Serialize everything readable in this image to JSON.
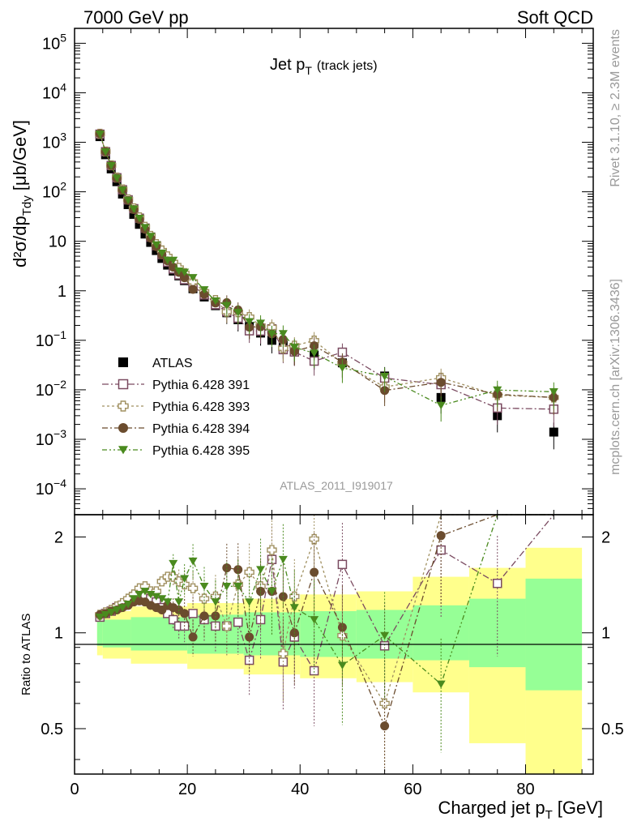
{
  "header": {
    "left": "7000 GeV pp",
    "right": "Soft QCD"
  },
  "side_labels": {
    "rivet": "Rivet 3.1.10, ≥ 2.3M events",
    "mcplots": "mcplots.cern.ch [arXiv:1306.3436]"
  },
  "chart_data": {
    "type": "scatter",
    "title": "Jet p",
    "title_sub": "T",
    "title_note": "(track jets)",
    "analysis_id": "ATLAS_2011_I919017",
    "xlabel": "Charged jet p",
    "xlabel_sub": "T",
    "xlabel_unit": "[GeV]",
    "ylabel": "d²σ/dp",
    "ylabel_sub": "Tdy",
    "ylabel_unit": "[μb/GeV]",
    "ratio_ylabel": "Ratio to ATLAS",
    "xlim": [
      0,
      92
    ],
    "ylim": [
      3e-05,
      200000
    ],
    "yscale": "log",
    "ratio_ylim": [
      0.36,
      2.35
    ],
    "ratio_yscale": "log",
    "x_ticks": [
      "0",
      "20",
      "40",
      "60",
      "80"
    ],
    "y_ticks": [
      "10^5",
      "10^4",
      "10^3",
      "10^2",
      "10",
      "1",
      "10^-1",
      "10^-2",
      "10^-3",
      "10^-4"
    ],
    "ratio_ticks": [
      "2",
      "1",
      "0.5"
    ],
    "legend_position": "middle-left",
    "x": [
      4.5,
      5.5,
      6.5,
      7.5,
      8.5,
      9.5,
      10.5,
      11.5,
      12.5,
      13.5,
      14.5,
      15.5,
      16.5,
      17.5,
      18.5,
      19.5,
      21,
      23,
      25,
      27,
      29,
      31,
      33,
      35,
      37,
      39,
      42.5,
      47.5,
      55,
      65,
      75,
      85
    ],
    "series": [
      {
        "name": "ATLAS",
        "color": "#000000",
        "marker": "square-filled",
        "values": [
          1300,
          560,
          290,
          160,
          90,
          55,
          35,
          22,
          14,
          9.5,
          6.5,
          4.5,
          3.3,
          2.5,
          2.0,
          1.6,
          1.1,
          0.75,
          0.5,
          0.36,
          0.26,
          0.19,
          0.14,
          0.1,
          0.08,
          0.06,
          0.05,
          0.035,
          0.019,
          0.007,
          0.003,
          0.0014
        ],
        "band_inner": [
          [
            4,
            5,
            0.91,
            1.09
          ],
          [
            5,
            10,
            0.9,
            1.1
          ],
          [
            10,
            20,
            0.88,
            1.12
          ],
          [
            20,
            30,
            0.86,
            1.14
          ],
          [
            30,
            40,
            0.85,
            1.16
          ],
          [
            40,
            50,
            0.84,
            1.17
          ],
          [
            50,
            60,
            0.83,
            1.18
          ],
          [
            60,
            70,
            0.82,
            1.22
          ],
          [
            70,
            80,
            0.78,
            1.28
          ],
          [
            80,
            90,
            0.66,
            1.48
          ]
        ],
        "band_outer": [
          [
            4,
            5,
            0.85,
            1.15
          ],
          [
            5,
            10,
            0.83,
            1.17
          ],
          [
            10,
            20,
            0.8,
            1.21
          ],
          [
            20,
            30,
            0.77,
            1.24
          ],
          [
            30,
            40,
            0.74,
            1.28
          ],
          [
            40,
            50,
            0.72,
            1.32
          ],
          [
            50,
            60,
            0.7,
            1.35
          ],
          [
            60,
            70,
            0.65,
            1.5
          ],
          [
            70,
            80,
            0.45,
            1.6
          ],
          [
            80,
            90,
            0.3,
            1.85
          ]
        ]
      },
      {
        "name": "Pythia 6.428 391",
        "color": "#7a4a60",
        "marker": "square-open",
        "ratio": [
          1.12,
          1.15,
          1.17,
          1.2,
          1.22,
          1.25,
          1.3,
          1.33,
          1.32,
          1.28,
          1.25,
          1.2,
          1.15,
          1.1,
          1.05,
          1.05,
          1.15,
          1.1,
          1.05,
          1.05,
          1.08,
          0.82,
          1.1,
          1.7,
          0.81,
          0.97,
          0.76,
          1.64,
          0.91,
          1.82,
          1.43,
          2.9
        ]
      },
      {
        "name": "Pythia 6.428 393",
        "color": "#a09060",
        "marker": "cross-open",
        "ratio": [
          1.14,
          1.16,
          1.18,
          1.21,
          1.24,
          1.28,
          1.32,
          1.38,
          1.4,
          1.35,
          1.35,
          1.45,
          1.5,
          1.5,
          1.45,
          1.42,
          1.38,
          1.28,
          1.3,
          1.05,
          1.42,
          1.55,
          1.4,
          1.82,
          0.86,
          1.3,
          1.97,
          0.98,
          0.6,
          2.5,
          2.6,
          5.0
        ]
      },
      {
        "name": "Pythia 6.428 394",
        "color": "#6b4c2e",
        "marker": "circle-filled",
        "ratio": [
          1.14,
          1.15,
          1.17,
          1.18,
          1.2,
          1.22,
          1.25,
          1.26,
          1.25,
          1.22,
          1.2,
          1.18,
          1.22,
          1.2,
          1.18,
          1.15,
          0.97,
          1.13,
          1.13,
          1.6,
          1.58,
          0.97,
          1.35,
          1.35,
          1.3,
          1.0,
          1.55,
          1.04,
          0.51,
          2.02,
          2.7,
          5.0
        ]
      },
      {
        "name": "Pythia 6.428 395",
        "color": "#4a8a1e",
        "marker": "triangle-down-filled",
        "ratio": [
          1.12,
          1.14,
          1.16,
          1.18,
          1.2,
          1.23,
          1.28,
          1.32,
          1.35,
          1.32,
          1.3,
          1.28,
          1.25,
          1.65,
          1.25,
          1.48,
          1.68,
          1.4,
          1.25,
          1.4,
          1.4,
          1.25,
          1.58,
          1.35,
          1.7,
          1.2,
          1.1,
          0.79,
          0.98,
          0.69,
          3.3,
          6.5
        ]
      }
    ]
  }
}
